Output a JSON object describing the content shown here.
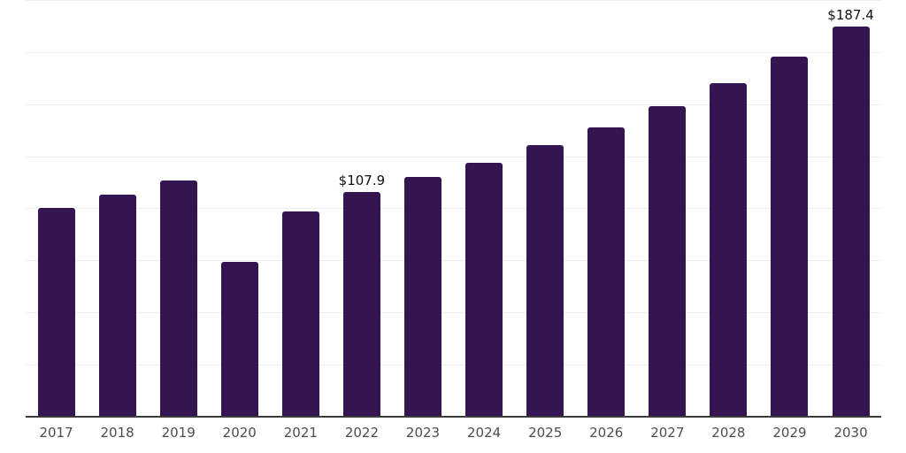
{
  "chart": {
    "background_color": "#ffffff",
    "bar_color": "#341451",
    "grid_color": "#efefef",
    "axis_color": "#3b3b3b",
    "tick_label_color": "#4d4d4d",
    "value_label_color": "#111111"
  },
  "chart_data": {
    "type": "bar",
    "title": "",
    "xlabel": "",
    "ylabel": "",
    "categories": [
      "2017",
      "2018",
      "2019",
      "2020",
      "2021",
      "2022",
      "2023",
      "2024",
      "2025",
      "2026",
      "2027",
      "2028",
      "2029",
      "2030"
    ],
    "values": [
      100.2,
      106.5,
      113.3,
      74.4,
      98.5,
      107.9,
      115.2,
      121.9,
      130.4,
      139.0,
      149.2,
      160.2,
      172.9,
      187.4
    ],
    "data_labels": {
      "2022": "$107.9",
      "2030": "$187.4"
    },
    "ylim": [
      0,
      200
    ],
    "grid_step": 25,
    "grid": "horizontal",
    "legend_position": "none",
    "y_axis_tick_labels_visible": false
  }
}
